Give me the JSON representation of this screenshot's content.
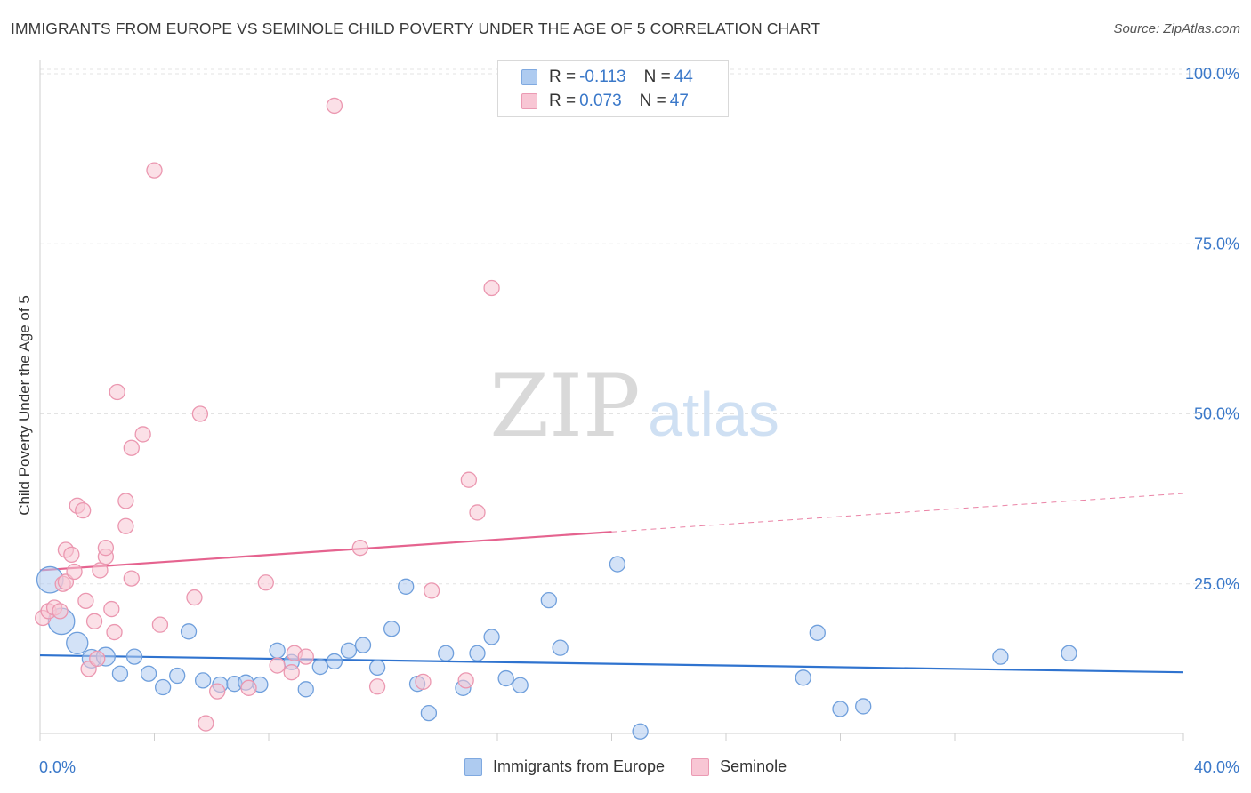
{
  "title": "IMMIGRANTS FROM EUROPE VS SEMINOLE CHILD POVERTY UNDER THE AGE OF 5 CORRELATION CHART",
  "source": "Source: ZipAtlas.com",
  "watermark": {
    "zip": "ZIP",
    "atlas": "atlas"
  },
  "legend": {
    "items": [
      {
        "r_label": "R = ",
        "r_value": "-0.113",
        "n_label": "N = ",
        "n_value": "44",
        "color": "#aecbf0",
        "border": "#7fa9e0"
      },
      {
        "r_label": "R = ",
        "r_value": "0.073",
        "n_label": "N = ",
        "n_value": "47",
        "color": "#f8c6d4",
        "border": "#eb9ab3"
      }
    ]
  },
  "chart_data": {
    "type": "scatter",
    "ylabel": "Child Poverty Under the Age of 5",
    "xlim": [
      0,
      40
    ],
    "ylim": [
      0,
      105
    ],
    "x_tick_labels": [
      "0.0%",
      "40.0%"
    ],
    "y_ticks": [
      25,
      50,
      75,
      100
    ],
    "y_tick_labels": [
      "25.0%",
      "50.0%",
      "75.0%",
      "100.0%"
    ],
    "grid": "horizontal dashed",
    "legend_placement": "top-center and bottom-center",
    "series": [
      {
        "name": "Immigrants from Europe",
        "color": "#aecbf0",
        "stroke": "#6f9fdc",
        "line_color": "#2f73cf",
        "trend": {
          "x": [
            0,
            40
          ],
          "y": [
            14.5,
            12.0
          ],
          "solid_until": 40
        },
        "points": [
          {
            "x": 0.35,
            "y": 25.6,
            "s": 3
          },
          {
            "x": 0.75,
            "y": 19.5,
            "s": 3
          },
          {
            "x": 1.3,
            "y": 16.3,
            "s": 2
          },
          {
            "x": 1.8,
            "y": 14.0,
            "s": 1.5
          },
          {
            "x": 2.3,
            "y": 14.3,
            "s": 1.5
          },
          {
            "x": 2.8,
            "y": 11.8,
            "s": 1
          },
          {
            "x": 3.3,
            "y": 14.3,
            "s": 1
          },
          {
            "x": 3.8,
            "y": 11.8,
            "s": 1
          },
          {
            "x": 4.3,
            "y": 9.8,
            "s": 1
          },
          {
            "x": 4.8,
            "y": 11.5,
            "s": 1
          },
          {
            "x": 5.2,
            "y": 18.0,
            "s": 1
          },
          {
            "x": 5.7,
            "y": 10.8,
            "s": 1
          },
          {
            "x": 6.3,
            "y": 10.2,
            "s": 1
          },
          {
            "x": 6.8,
            "y": 10.3,
            "s": 1
          },
          {
            "x": 7.2,
            "y": 10.5,
            "s": 1
          },
          {
            "x": 7.7,
            "y": 10.2,
            "s": 1
          },
          {
            "x": 8.3,
            "y": 15.2,
            "s": 1
          },
          {
            "x": 8.8,
            "y": 13.5,
            "s": 1
          },
          {
            "x": 9.3,
            "y": 9.5,
            "s": 1
          },
          {
            "x": 9.8,
            "y": 12.8,
            "s": 1
          },
          {
            "x": 10.3,
            "y": 13.6,
            "s": 1
          },
          {
            "x": 10.8,
            "y": 15.2,
            "s": 1
          },
          {
            "x": 11.3,
            "y": 16.0,
            "s": 1
          },
          {
            "x": 11.8,
            "y": 12.7,
            "s": 1
          },
          {
            "x": 12.3,
            "y": 18.4,
            "s": 1
          },
          {
            "x": 12.8,
            "y": 24.6,
            "s": 1
          },
          {
            "x": 13.2,
            "y": 10.3,
            "s": 1
          },
          {
            "x": 13.6,
            "y": 6.0,
            "s": 1
          },
          {
            "x": 14.2,
            "y": 14.8,
            "s": 1
          },
          {
            "x": 14.8,
            "y": 9.7,
            "s": 1
          },
          {
            "x": 15.3,
            "y": 14.8,
            "s": 1
          },
          {
            "x": 15.8,
            "y": 17.2,
            "s": 1
          },
          {
            "x": 16.3,
            "y": 11.1,
            "s": 1
          },
          {
            "x": 16.8,
            "y": 10.1,
            "s": 1
          },
          {
            "x": 17.8,
            "y": 22.6,
            "s": 1
          },
          {
            "x": 18.2,
            "y": 15.6,
            "s": 1
          },
          {
            "x": 20.2,
            "y": 27.9,
            "s": 1
          },
          {
            "x": 21.0,
            "y": 3.3,
            "s": 1
          },
          {
            "x": 26.7,
            "y": 11.2,
            "s": 1
          },
          {
            "x": 27.2,
            "y": 17.8,
            "s": 1
          },
          {
            "x": 28.0,
            "y": 6.6,
            "s": 1
          },
          {
            "x": 28.8,
            "y": 7.0,
            "s": 1
          },
          {
            "x": 33.6,
            "y": 14.3,
            "s": 1
          },
          {
            "x": 36.0,
            "y": 14.8,
            "s": 1
          }
        ]
      },
      {
        "name": "Seminole",
        "color": "#f8c6d4",
        "stroke": "#eb97b0",
        "line_color": "#e5638f",
        "trend": {
          "x": [
            0,
            40
          ],
          "y": [
            27.0,
            38.3
          ],
          "solid_until": 20
        },
        "points": [
          {
            "x": 0.1,
            "y": 20.0,
            "s": 1
          },
          {
            "x": 0.3,
            "y": 21.0,
            "s": 1
          },
          {
            "x": 0.5,
            "y": 21.5,
            "s": 1
          },
          {
            "x": 0.7,
            "y": 21.0,
            "s": 1
          },
          {
            "x": 0.8,
            "y": 25.0,
            "s": 1
          },
          {
            "x": 0.9,
            "y": 25.3,
            "s": 1
          },
          {
            "x": 0.9,
            "y": 30.0,
            "s": 1
          },
          {
            "x": 1.1,
            "y": 29.3,
            "s": 1
          },
          {
            "x": 1.2,
            "y": 26.8,
            "s": 1
          },
          {
            "x": 1.3,
            "y": 36.5,
            "s": 1
          },
          {
            "x": 1.5,
            "y": 35.8,
            "s": 1
          },
          {
            "x": 1.6,
            "y": 22.5,
            "s": 1
          },
          {
            "x": 1.7,
            "y": 12.5,
            "s": 1
          },
          {
            "x": 1.9,
            "y": 19.5,
            "s": 1
          },
          {
            "x": 2.0,
            "y": 14.0,
            "s": 1
          },
          {
            "x": 2.1,
            "y": 27.0,
            "s": 1
          },
          {
            "x": 2.3,
            "y": 29.0,
            "s": 1
          },
          {
            "x": 2.3,
            "y": 30.3,
            "s": 1
          },
          {
            "x": 2.5,
            "y": 21.3,
            "s": 1
          },
          {
            "x": 2.6,
            "y": 17.9,
            "s": 1
          },
          {
            "x": 2.7,
            "y": 53.2,
            "s": 1
          },
          {
            "x": 3.0,
            "y": 33.5,
            "s": 1
          },
          {
            "x": 3.0,
            "y": 37.2,
            "s": 1
          },
          {
            "x": 3.2,
            "y": 25.8,
            "s": 1
          },
          {
            "x": 3.2,
            "y": 45.0,
            "s": 1
          },
          {
            "x": 3.6,
            "y": 47.0,
            "s": 1
          },
          {
            "x": 4.0,
            "y": 85.8,
            "s": 1
          },
          {
            "x": 4.2,
            "y": 19.0,
            "s": 1
          },
          {
            "x": 5.4,
            "y": 23.0,
            "s": 1
          },
          {
            "x": 5.6,
            "y": 50.0,
            "s": 1
          },
          {
            "x": 5.8,
            "y": 4.5,
            "s": 1
          },
          {
            "x": 6.2,
            "y": 9.2,
            "s": 1
          },
          {
            "x": 7.3,
            "y": 9.7,
            "s": 1
          },
          {
            "x": 7.9,
            "y": 25.2,
            "s": 1
          },
          {
            "x": 8.3,
            "y": 13.0,
            "s": 1
          },
          {
            "x": 8.8,
            "y": 12.0,
            "s": 1
          },
          {
            "x": 8.9,
            "y": 14.8,
            "s": 1
          },
          {
            "x": 9.3,
            "y": 14.3,
            "s": 1
          },
          {
            "x": 10.3,
            "y": 95.3,
            "s": 1
          },
          {
            "x": 11.2,
            "y": 30.3,
            "s": 1
          },
          {
            "x": 11.8,
            "y": 9.9,
            "s": 1
          },
          {
            "x": 13.4,
            "y": 10.6,
            "s": 1
          },
          {
            "x": 13.7,
            "y": 24.0,
            "s": 1
          },
          {
            "x": 14.9,
            "y": 10.8,
            "s": 1
          },
          {
            "x": 15.0,
            "y": 40.3,
            "s": 1
          },
          {
            "x": 15.3,
            "y": 35.5,
            "s": 1
          },
          {
            "x": 15.8,
            "y": 68.5,
            "s": 1
          }
        ]
      }
    ]
  }
}
